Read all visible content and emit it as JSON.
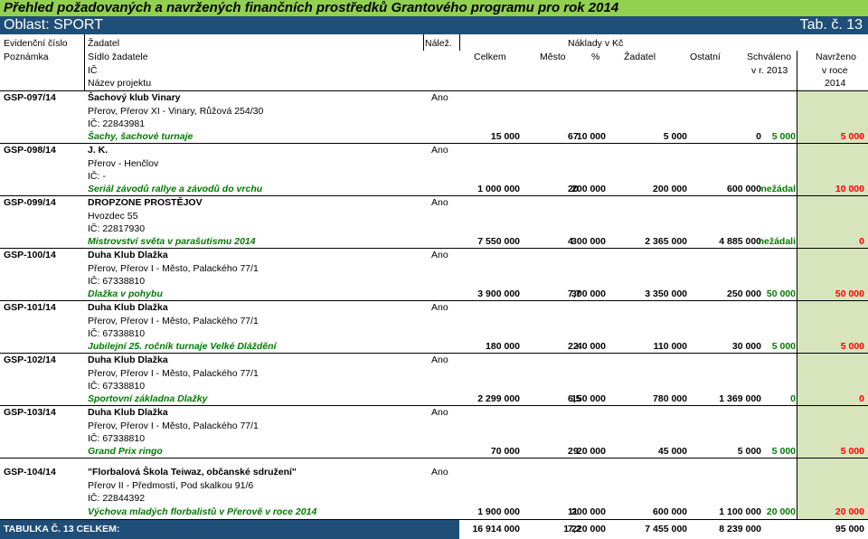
{
  "title": "Přehled požadovaných a navržených finančních prostředků Grantového programu pro rok 2014",
  "subtitle": {
    "left": "Oblast: SPORT",
    "right": "Tab. č. 13"
  },
  "header": {
    "r1": {
      "evid": "Evidenční číslo",
      "zadatel": "Žadatel",
      "nalez": "Nálež.",
      "naklady": "Náklady v Kč"
    },
    "r2": {
      "poznamka": "Poznámka",
      "sidlo": "Sídlo žadatele",
      "celkem": "Celkem",
      "mesto": "Město",
      "pct": "%",
      "zadatel": "Žadatel",
      "ostatni": "Ostatní",
      "schvaleno": "Schváleno",
      "navrzeno": "Navrženo"
    },
    "r3": {
      "ic": "IČ",
      "schvaleno": "v r. 2013",
      "navrzeno": "v roce"
    },
    "r4": {
      "nazev": "Název projektu",
      "navrzeno": "2014"
    }
  },
  "rows": [
    {
      "id": "GSP-097/14",
      "name": "Šachový klub Vinary",
      "address": "Přerov, Přerov XI - Vinary, Růžová 254/30",
      "ic": "IČ: 22843981",
      "project": "Šachy, šachové turnaje",
      "nalez": "Ano",
      "celkem": "15 000",
      "mesto": "10 000",
      "pct": "67",
      "zadatel": "5 000",
      "ostatni": "0",
      "schvaleno": "5 000",
      "navrzeno": "5 000"
    },
    {
      "id": "GSP-098/14",
      "name": "J. K.",
      "address": "Přerov - Henčlov",
      "ic": "IČ: -",
      "project": "Seriál závodů rallye a závodů do vrchu",
      "nalez": "Ano",
      "celkem": "1 000 000",
      "mesto": "200 000",
      "pct": "20",
      "zadatel": "200 000",
      "ostatni": "600 000",
      "schvaleno": "nežádal",
      "navrzeno": "10 000"
    },
    {
      "id": "GSP-099/14",
      "name": "DROPZONE PROSTĚJOV",
      "address": "Hvozdec 55",
      "ic": "IČ: 22817930",
      "project": "Mistrovství světa v parašutismu 2014",
      "nalez": "Ano",
      "celkem": "7 550 000",
      "mesto": "300 000",
      "pct": "4",
      "zadatel": "2 365 000",
      "ostatni": "4 885 000",
      "schvaleno": "nežádali",
      "navrzeno": "0"
    },
    {
      "id": "GSP-100/14",
      "name": "Duha Klub Dlažka",
      "address": "Přerov, Přerov I - Město, Palackého 77/1",
      "ic": "IČ: 67338810",
      "project": "Dlažka v pohybu",
      "nalez": "Ano",
      "celkem": "3 900 000",
      "mesto": "300 000",
      "pct": "7,7",
      "zadatel": "3 350 000",
      "ostatni": "250 000",
      "schvaleno": "50 000",
      "navrzeno": "50 000"
    },
    {
      "id": "GSP-101/14",
      "name": "Duha Klub Dlažka",
      "address": "Přerov, Přerov I - Město, Palackého 77/1",
      "ic": "IČ: 67338810",
      "project": "Jubilejní 25. ročník turnaje Velké Dláždění",
      "nalez": "Ano",
      "celkem": "180 000",
      "mesto": "40 000",
      "pct": "22",
      "zadatel": "110 000",
      "ostatni": "30 000",
      "schvaleno": "5 000",
      "navrzeno": "5 000"
    },
    {
      "id": "GSP-102/14",
      "name": "Duha Klub Dlažka",
      "address": "Přerov, Přerov I - Město, Palackého 77/1",
      "ic": "IČ: 67338810",
      "project": "Sportovní základna Dlažky",
      "nalez": "Ano",
      "celkem": "2 299 000",
      "mesto": "150 000",
      "pct": "6,5",
      "zadatel": "780 000",
      "ostatni": "1 369 000",
      "schvaleno": "0",
      "navrzeno": "0"
    },
    {
      "id": "GSP-103/14",
      "name": "Duha Klub Dlažka",
      "address": "Přerov, Přerov I - Město, Palackého 77/1",
      "ic": "IČ: 67338810",
      "project": "Grand Prix ringo",
      "nalez": "Ano",
      "celkem": "70 000",
      "mesto": "20 000",
      "pct": "29",
      "zadatel": "45 000",
      "ostatni": "5 000",
      "schvaleno": "5 000",
      "navrzeno": "5 000"
    },
    {
      "id": "GSP-104/14",
      "name": "\"Florbalová Škola Teiwaz, občanské sdružení\"",
      "address": "Přerov II - Předmostí, Pod skalkou 91/6",
      "ic": "IČ: 22844392",
      "project": "Výchova mladých florbalistů v Přerově v roce 2014",
      "nalez": "Ano",
      "celkem": "1 900 000",
      "mesto": "200 000",
      "pct": "11",
      "zadatel": "600 000",
      "ostatni": "1 100 000",
      "schvaleno": "20 000",
      "navrzeno": "20 000"
    }
  ],
  "total": {
    "label": "TABULKA Č. 13 CELKEM:",
    "celkem": "16 914 000",
    "mesto": "1 220 000",
    "pct": "7,2",
    "zadatel": "7 455 000",
    "ostatni": "8 239 000",
    "navrzeno": "95 000"
  }
}
